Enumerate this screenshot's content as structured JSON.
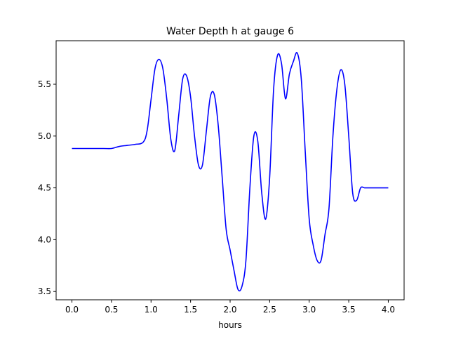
{
  "chart_data": {
    "type": "line",
    "title": "Water Depth h at gauge 6",
    "xlabel": "hours",
    "ylabel": "",
    "xlim": [
      -0.2,
      4.2
    ],
    "ylim": [
      3.42,
      5.92
    ],
    "xticks": [
      {
        "value": 0.0,
        "label": "0.0"
      },
      {
        "value": 0.5,
        "label": "0.5"
      },
      {
        "value": 1.0,
        "label": "1.0"
      },
      {
        "value": 1.5,
        "label": "1.5"
      },
      {
        "value": 2.0,
        "label": "2.0"
      },
      {
        "value": 2.5,
        "label": "2.5"
      },
      {
        "value": 3.0,
        "label": "3.0"
      },
      {
        "value": 3.5,
        "label": "3.5"
      },
      {
        "value": 4.0,
        "label": "4.0"
      }
    ],
    "yticks": [
      {
        "value": 3.5,
        "label": "3.5"
      },
      {
        "value": 4.0,
        "label": "4.0"
      },
      {
        "value": 4.5,
        "label": "4.5"
      },
      {
        "value": 5.0,
        "label": "5.0"
      },
      {
        "value": 5.5,
        "label": "5.5"
      }
    ],
    "grid": false,
    "series": [
      {
        "color": "#0000ff",
        "x": [
          0.0,
          0.2,
          0.4,
          0.5,
          0.6,
          0.7,
          0.8,
          0.9,
          0.95,
          1.0,
          1.05,
          1.1,
          1.15,
          1.2,
          1.25,
          1.3,
          1.35,
          1.4,
          1.45,
          1.5,
          1.55,
          1.6,
          1.65,
          1.7,
          1.75,
          1.8,
          1.85,
          1.9,
          1.95,
          2.0,
          2.05,
          2.1,
          2.15,
          2.2,
          2.25,
          2.3,
          2.35,
          2.4,
          2.45,
          2.5,
          2.55,
          2.6,
          2.65,
          2.7,
          2.75,
          2.8,
          2.85,
          2.9,
          2.95,
          3.0,
          3.05,
          3.1,
          3.15,
          3.2,
          3.25,
          3.3,
          3.35,
          3.4,
          3.45,
          3.5,
          3.55,
          3.6,
          3.65,
          3.7,
          3.75,
          3.8,
          3.85,
          3.9,
          3.95,
          4.0
        ],
        "y": [
          4.88,
          4.88,
          4.88,
          4.88,
          4.9,
          4.91,
          4.92,
          4.94,
          5.05,
          5.35,
          5.65,
          5.74,
          5.65,
          5.35,
          4.97,
          4.86,
          5.2,
          5.55,
          5.58,
          5.38,
          5.0,
          4.72,
          4.72,
          5.05,
          5.38,
          5.4,
          5.1,
          4.6,
          4.1,
          3.9,
          3.7,
          3.52,
          3.55,
          3.8,
          4.5,
          5.0,
          4.95,
          4.45,
          4.2,
          4.6,
          5.45,
          5.78,
          5.7,
          5.36,
          5.6,
          5.72,
          5.8,
          5.55,
          4.85,
          4.2,
          3.95,
          3.8,
          3.8,
          4.05,
          4.3,
          5.0,
          5.45,
          5.64,
          5.5,
          5.0,
          4.45,
          4.38,
          4.5,
          4.5,
          4.5,
          4.5,
          4.5,
          4.5,
          4.5,
          4.5
        ]
      }
    ]
  }
}
